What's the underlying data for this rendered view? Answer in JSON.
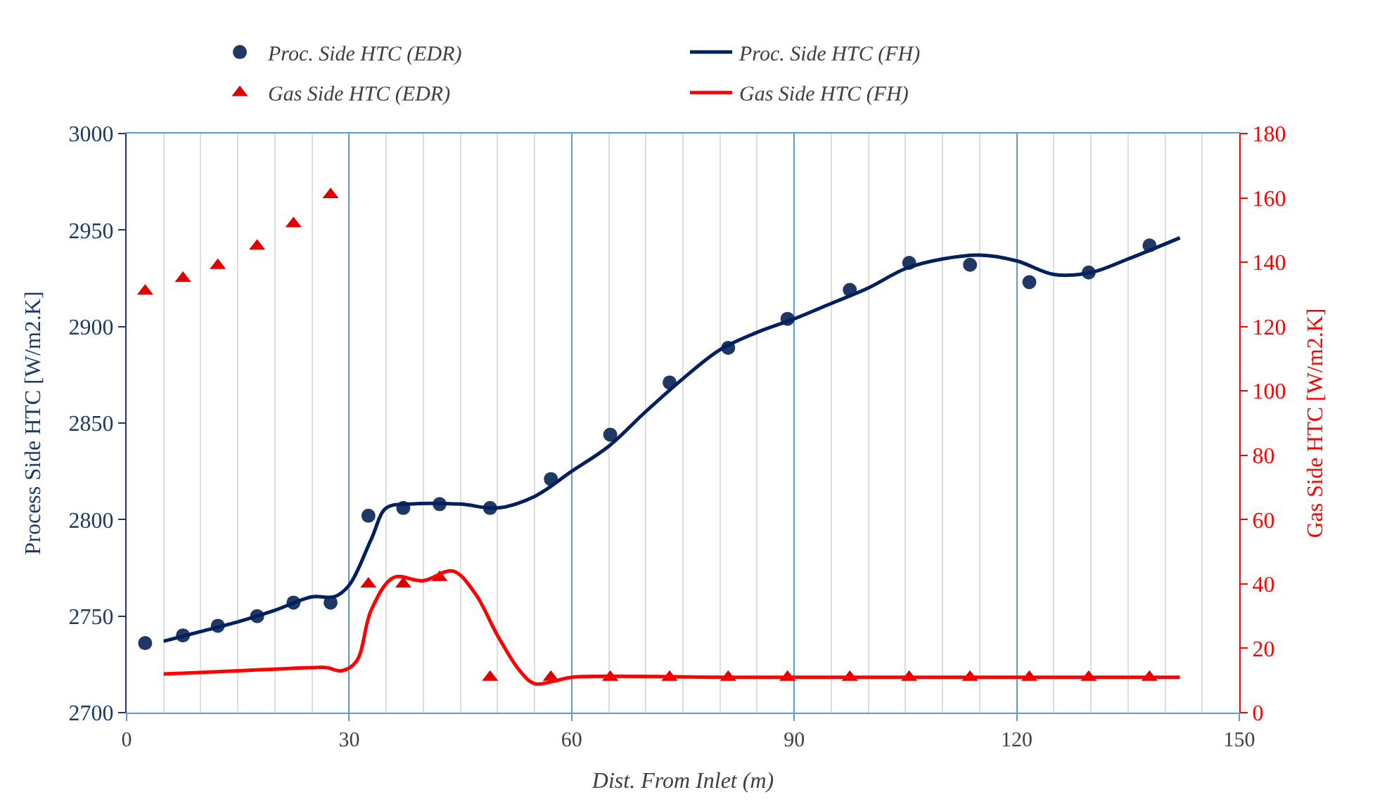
{
  "chart_data": {
    "type": "scatter",
    "xlabel": "Dist. From Inlet (m)",
    "ylabel": "Process Side HTC [W/m2.K]",
    "y2label": "Gas Side HTC [W/m2.K]",
    "xlim": [
      0,
      150
    ],
    "xticks": [
      0,
      30,
      60,
      90,
      120,
      150
    ],
    "ylim": [
      2700,
      3000
    ],
    "yticks": [
      2700,
      2750,
      2800,
      2850,
      2900,
      2950,
      3000
    ],
    "y2lim": [
      0,
      180
    ],
    "y2ticks": [
      0,
      20,
      40,
      60,
      80,
      100,
      120,
      140,
      160,
      180
    ],
    "grid": "x",
    "legend": "top",
    "series": [
      {
        "name": "Proc. Side HTC (EDR)",
        "marker": "circle",
        "color": "#1f3864",
        "x": [
          2.5,
          7.6,
          12.3,
          17.6,
          22.5,
          27.5,
          32.6,
          37.3,
          42.2,
          49,
          57.2,
          65.2,
          73.2,
          81.1,
          89.1,
          97.5,
          105.5,
          113.7,
          121.7,
          129.7,
          137.9
        ],
        "values": [
          2736,
          2740,
          2745,
          2750,
          2757,
          2757,
          2802,
          2806,
          2808,
          2806,
          2821,
          2844,
          2871,
          2889,
          2904,
          2919,
          2933,
          2932,
          2923,
          2928,
          2942
        ]
      },
      {
        "name": "Proc. Side HTC (FH)",
        "type": "line",
        "marker": "none",
        "color": "#002060",
        "x": [
          5,
          10,
          15,
          20,
          25,
          28,
          30,
          33,
          35,
          38,
          45,
          50,
          55,
          60,
          65,
          70,
          75,
          80,
          85,
          90,
          95,
          100,
          105,
          110,
          115,
          120,
          125,
          130,
          135,
          142
        ],
        "values": [
          2737,
          2742,
          2747,
          2753,
          2760,
          2760,
          2766,
          2790,
          2806,
          2808,
          2808,
          2806,
          2812,
          2825,
          2838,
          2856,
          2873,
          2888,
          2897,
          2904,
          2912,
          2920,
          2930,
          2935,
          2937,
          2934,
          2927,
          2928,
          2935,
          2946
        ]
      },
      {
        "name": "Gas Side HTC (EDR)",
        "marker": "triangle",
        "axis": "y2",
        "color": "#e00000",
        "x": [
          2.5,
          7.6,
          12.3,
          17.6,
          22.5,
          27.5,
          32.6,
          37.3,
          42.2,
          49,
          57.2,
          65.2,
          73.2,
          81.1,
          89.1,
          97.5,
          105.5,
          113.7,
          121.7,
          129.7,
          137.9
        ],
        "values": [
          131,
          135,
          139,
          145,
          152,
          161,
          40,
          40,
          42,
          11,
          11,
          11,
          11,
          11,
          11,
          11,
          11,
          11,
          11,
          11,
          11
        ]
      },
      {
        "name": "Gas Side HTC (FH)",
        "type": "line",
        "marker": "none",
        "axis": "y2",
        "color": "#ff0000",
        "x": [
          5,
          15,
          25,
          27,
          29,
          31,
          33,
          36,
          40,
          44,
          47,
          50,
          53,
          55,
          58,
          60,
          80,
          100,
          120,
          142
        ],
        "values": [
          12,
          13,
          14,
          14,
          13,
          16,
          32,
          42,
          41,
          44,
          37,
          24,
          13,
          9,
          10,
          11,
          11,
          11,
          11,
          11
        ]
      }
    ]
  }
}
